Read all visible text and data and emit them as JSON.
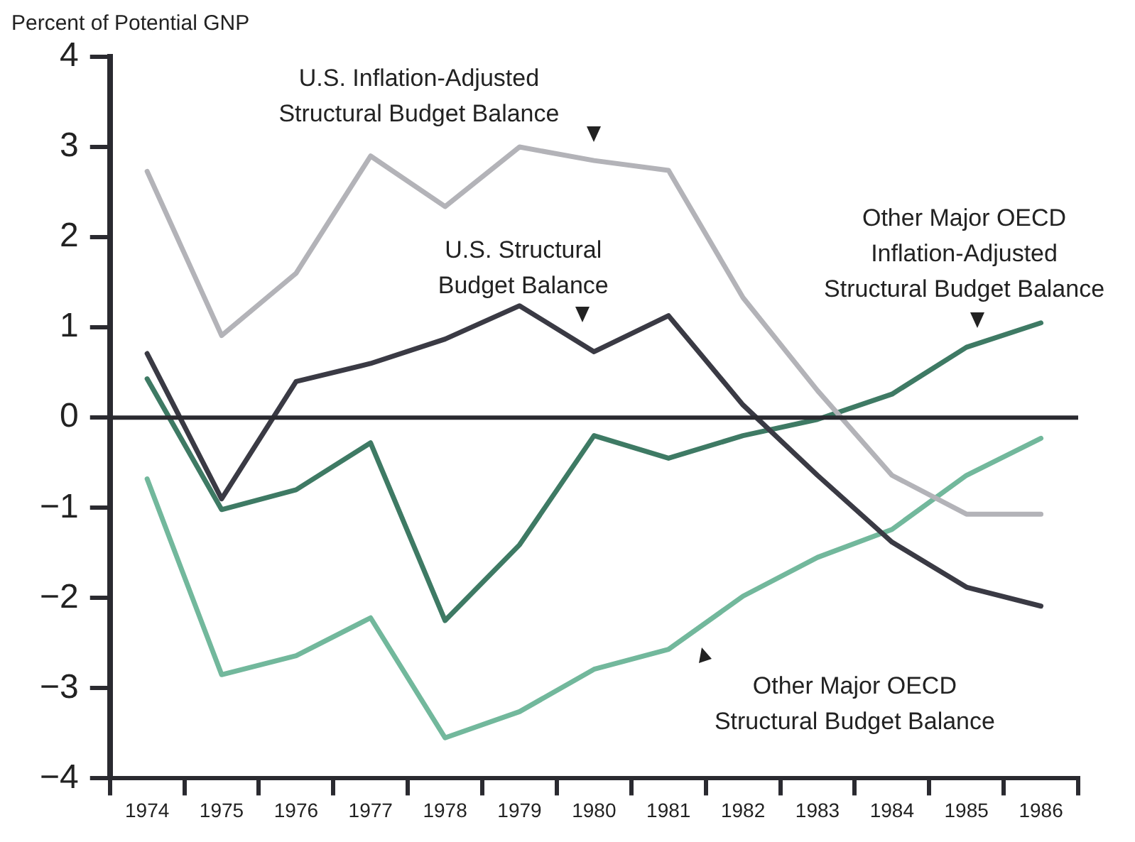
{
  "chart_data": {
    "type": "line",
    "ylabel": "Percent of Potential GNP",
    "categories": [
      "1974",
      "1975",
      "1976",
      "1977",
      "1978",
      "1979",
      "1980",
      "1981",
      "1982",
      "1983",
      "1984",
      "1985",
      "1986"
    ],
    "ylim": [
      -4,
      4
    ],
    "yticks": [
      {
        "value": -4,
        "label": "−4"
      },
      {
        "value": -3,
        "label": "−3"
      },
      {
        "value": -2,
        "label": "−2"
      },
      {
        "value": -1,
        "label": "−1"
      },
      0,
      1,
      2,
      3,
      4
    ],
    "grid": false,
    "legend": false,
    "marker": "none",
    "line_style": "solid",
    "ref_lines": [
      {
        "axis": "y",
        "value": 0,
        "color": "#2a2a30"
      }
    ],
    "series": [
      {
        "color": "#b3b3b8",
        "values": [
          2.73,
          0.91,
          1.6,
          2.9,
          2.34,
          3.0,
          2.85,
          2.74,
          1.33,
          0.3,
          -0.64,
          -1.07,
          -1.07
        ]
      },
      {
        "color": "#3a3a44",
        "values": [
          0.71,
          -0.9,
          0.4,
          0.6,
          0.87,
          1.24,
          0.73,
          1.13,
          0.14,
          -0.64,
          -1.38,
          -1.88,
          -2.09
        ]
      },
      {
        "color": "#3e7a64",
        "values": [
          0.43,
          -1.02,
          -0.8,
          -0.28,
          -2.25,
          -1.41,
          -0.2,
          -0.45,
          -0.2,
          -0.02,
          0.26,
          0.78,
          1.05
        ]
      },
      {
        "color": "#72b89c",
        "values": [
          -0.68,
          -2.85,
          -2.64,
          -2.22,
          -3.55,
          -3.26,
          -2.79,
          -2.57,
          -1.98,
          -1.55,
          -1.24,
          -0.64,
          -0.23
        ]
      }
    ],
    "annotations": [
      "U.S. Inflation-Adjusted\nStructural Budget Balance",
      "U.S. Structural\nBudget Balance",
      "Other Major OECD\nInflation-Adjusted\nStructural Budget Balance",
      "Other Major OECD\nStructural Budget Balance"
    ]
  }
}
